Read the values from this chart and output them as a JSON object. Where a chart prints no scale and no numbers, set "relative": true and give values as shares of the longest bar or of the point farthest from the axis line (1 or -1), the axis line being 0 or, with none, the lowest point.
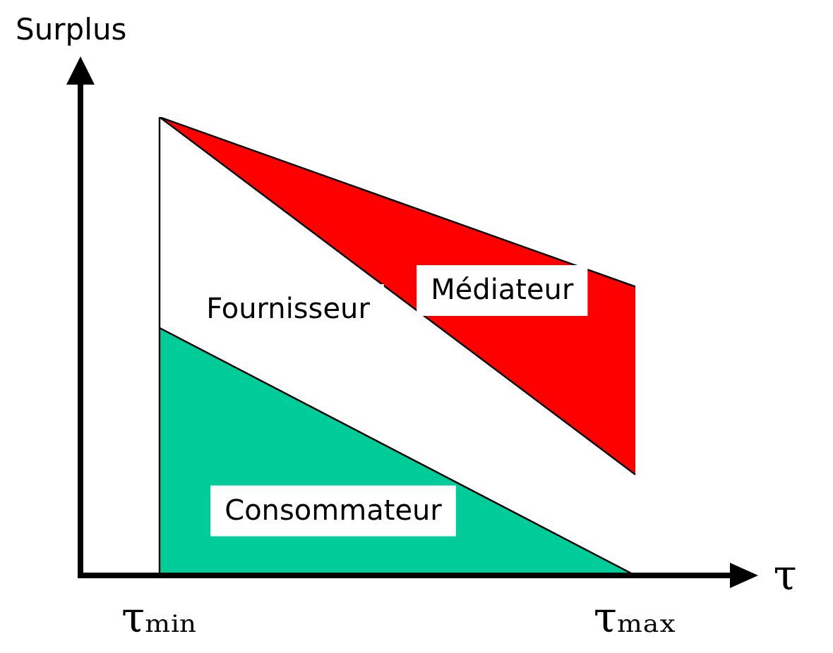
{
  "chart_data": {
    "type": "area",
    "xlabel": "τ",
    "ylabel": "Surplus",
    "categories": [
      "τₘᵢₙ",
      "τₘₐₓ"
    ],
    "relative": true,
    "stacked": true,
    "series": [
      {
        "name": "Consommateur",
        "color": "#00cc99",
        "values": [
          0.54,
          0
        ]
      },
      {
        "name": "Fournisseur",
        "color": "#ffffff",
        "values": [
          0.46,
          0.22
        ]
      },
      {
        "name": "Médiateur",
        "color": "#ff0000",
        "values": [
          0,
          0.41
        ]
      }
    ]
  }
}
